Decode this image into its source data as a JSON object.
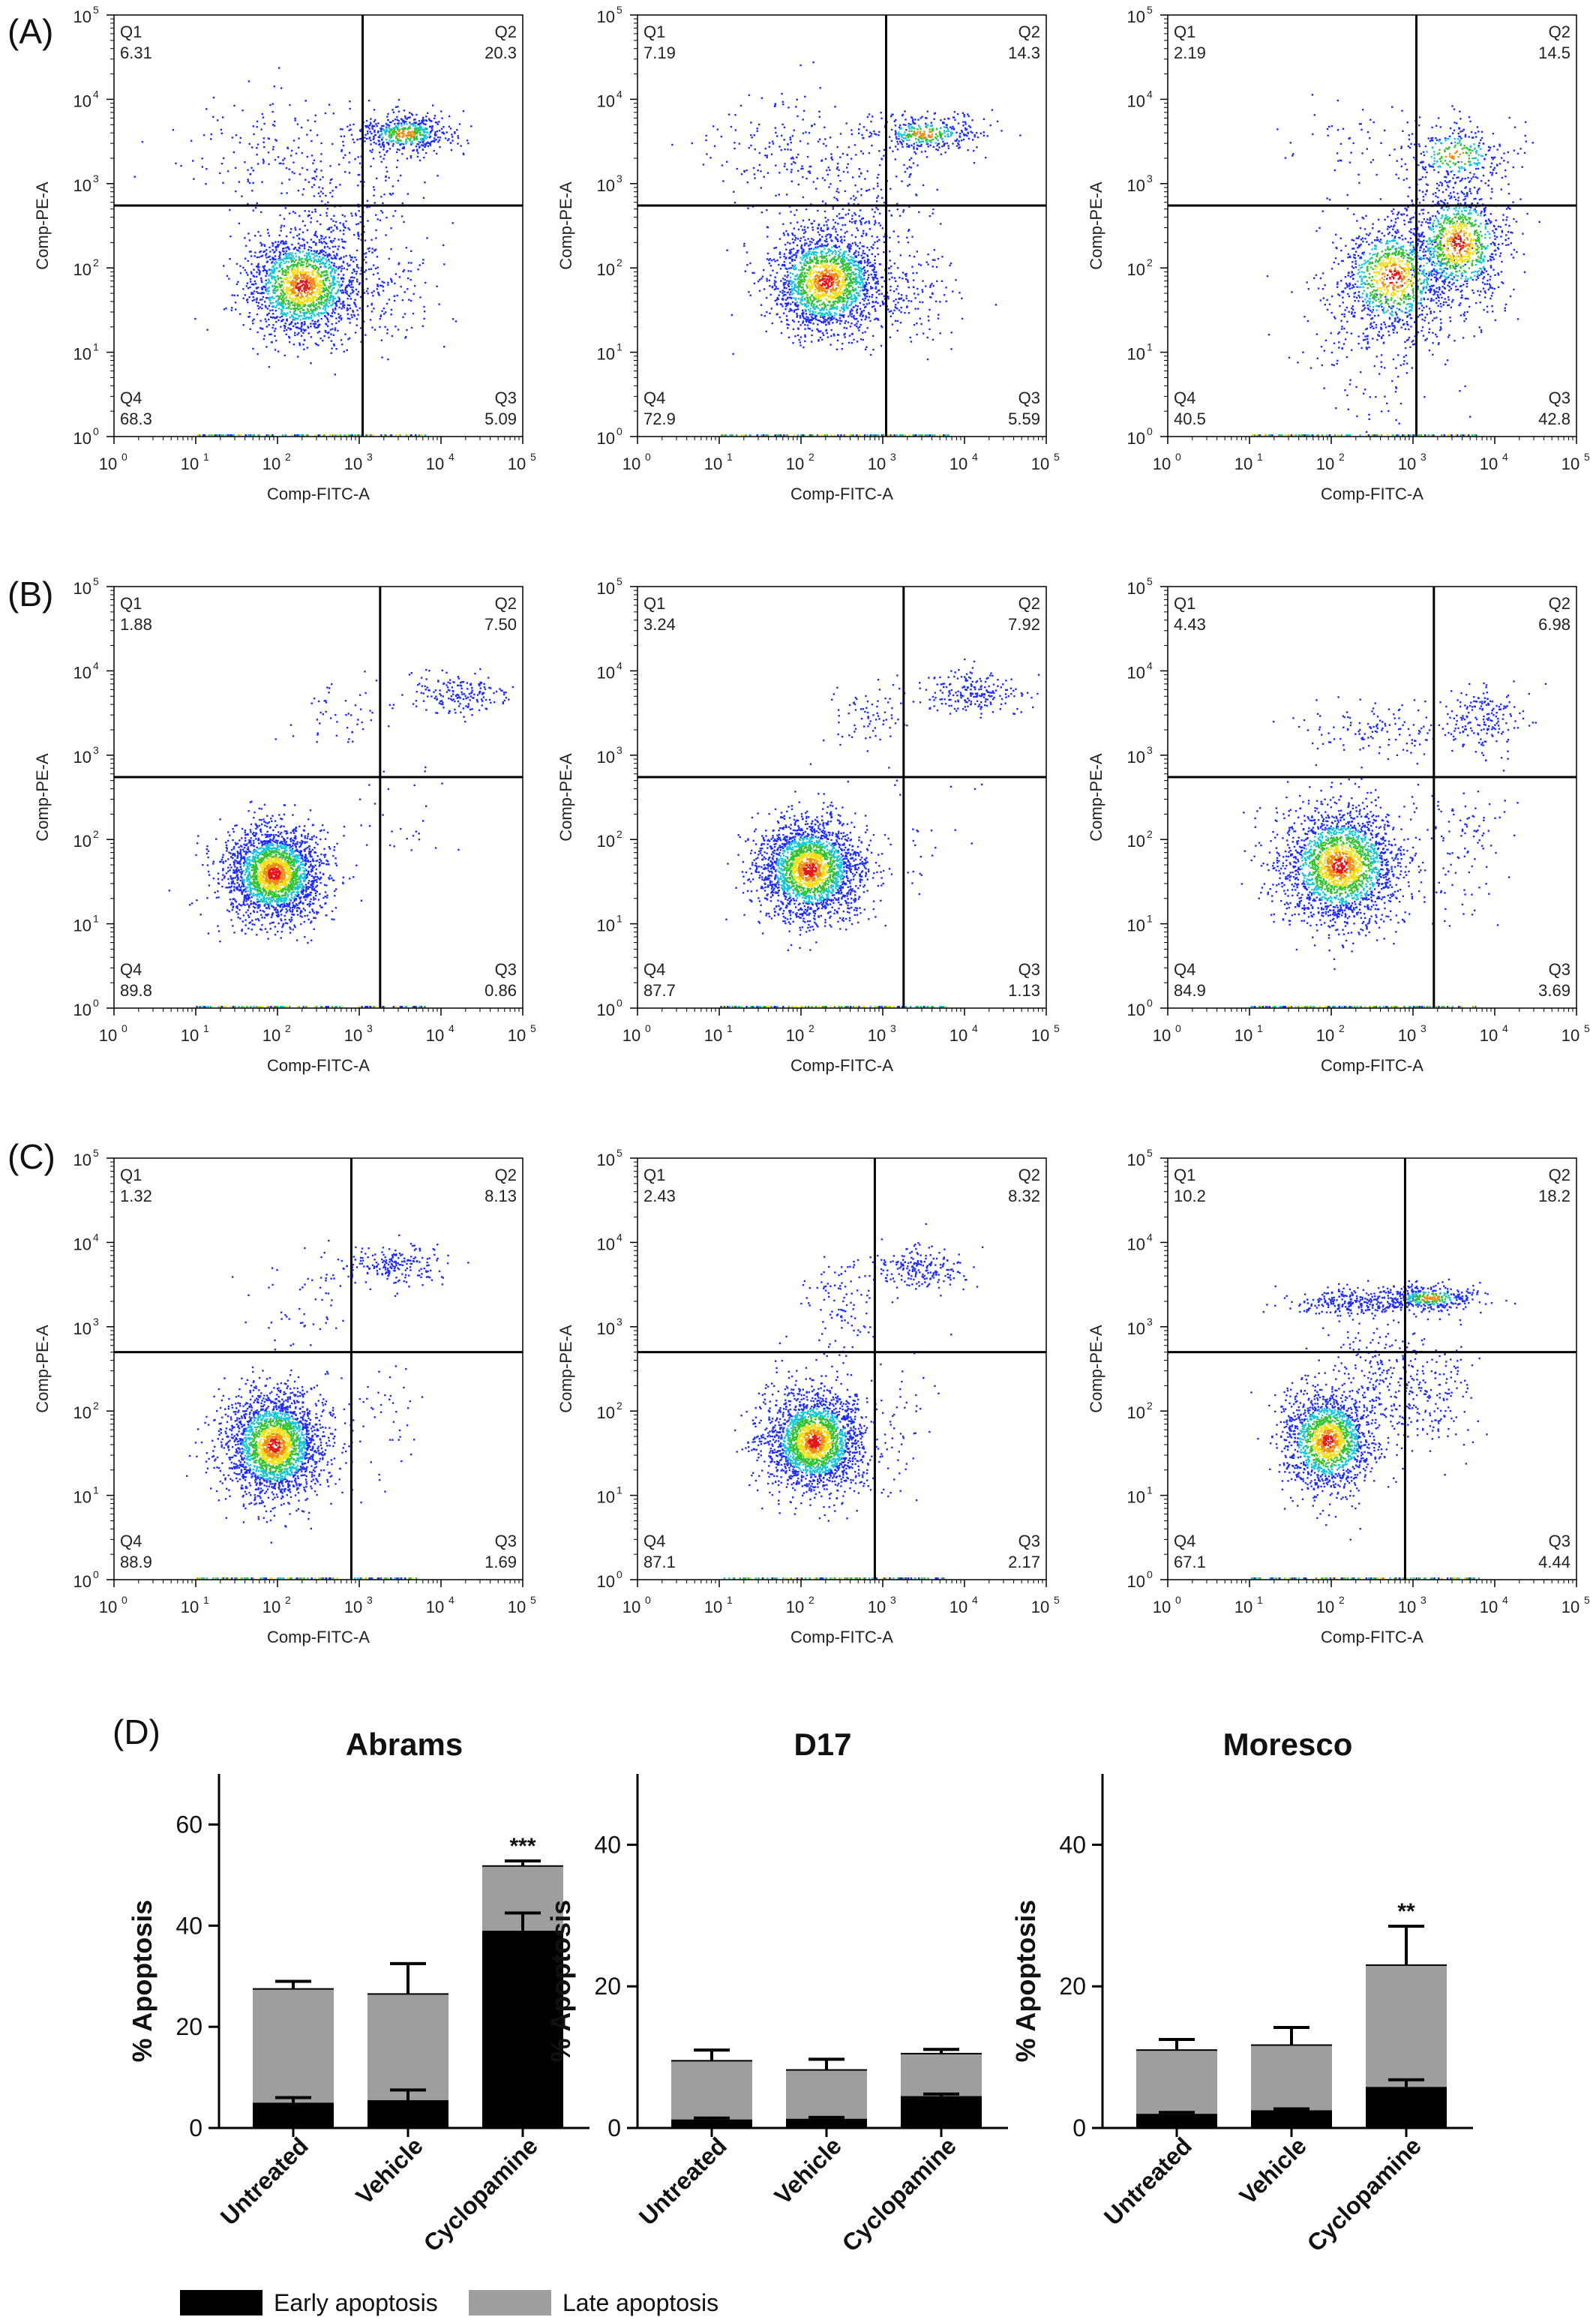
{
  "row_labels": [
    "(A)",
    "(B)",
    "(C)",
    "(D)"
  ],
  "colors": {
    "early": "#000000",
    "late": "#9e9e9e",
    "dot_blue": "#1d2bff",
    "dot_cyan": "#17c6d6",
    "dot_green": "#34c233",
    "dot_yellow": "#f2de17",
    "dot_orange": "#f08a13",
    "dot_red": "#e5161a"
  },
  "chart_data": [
    {
      "type": "scatter",
      "panel": "A",
      "column": 1,
      "xlabel": "Comp-FITC-A",
      "ylabel": "Comp-PE-A",
      "xlim": [
        1,
        100000
      ],
      "ylim": [
        1,
        100000
      ],
      "scale": "log",
      "xticks": [
        "10",
        "10",
        "10",
        "10",
        "10",
        "10"
      ],
      "tick_exponents": [
        "0",
        "1",
        "2",
        "3",
        "4",
        "5"
      ],
      "gate": {
        "x": 1100,
        "y": 550
      },
      "quadrants": {
        "Q1": "6.31",
        "Q2": "20.3",
        "Q3": "5.09",
        "Q4": "68.3"
      },
      "clusters": [
        [
          2.3,
          1.8,
          0.35,
          0.32,
          0.68
        ],
        [
          3.55,
          3.6,
          0.3,
          0.12,
          0.2
        ],
        [
          2.9,
          2.9,
          0.35,
          0.35,
          0.06
        ],
        [
          3.3,
          1.7,
          0.35,
          0.3,
          0.05
        ],
        [
          1.8,
          3.4,
          0.5,
          0.35,
          0.06
        ]
      ]
    },
    {
      "type": "scatter",
      "panel": "A",
      "column": 2,
      "xlabel": "Comp-FITC-A",
      "ylabel": "Comp-PE-A",
      "xlim": [
        1,
        100000
      ],
      "ylim": [
        1,
        100000
      ],
      "scale": "log",
      "xticks": [
        "10",
        "10",
        "10",
        "10",
        "10",
        "10"
      ],
      "tick_exponents": [
        "0",
        "1",
        "2",
        "3",
        "4",
        "5"
      ],
      "gate": {
        "x": 1100,
        "y": 550
      },
      "quadrants": {
        "Q1": "7.19",
        "Q2": "14.3",
        "Q3": "5.59",
        "Q4": "72.9"
      },
      "clusters": [
        [
          2.3,
          1.85,
          0.35,
          0.32,
          0.73
        ],
        [
          3.5,
          3.6,
          0.35,
          0.12,
          0.14
        ],
        [
          2.9,
          2.9,
          0.35,
          0.35,
          0.05
        ],
        [
          3.3,
          1.7,
          0.35,
          0.3,
          0.06
        ],
        [
          1.8,
          3.4,
          0.5,
          0.35,
          0.07
        ]
      ]
    },
    {
      "type": "scatter",
      "panel": "A",
      "column": 3,
      "xlabel": "Comp-FITC-A",
      "ylabel": "Comp-PE-A",
      "xlim": [
        1,
        100000
      ],
      "ylim": [
        1,
        100000
      ],
      "scale": "log",
      "xticks": [
        "10",
        "10",
        "10",
        "10",
        "10",
        "10"
      ],
      "tick_exponents": [
        "0",
        "1",
        "2",
        "3",
        "4",
        "5"
      ],
      "gate": {
        "x": 1100,
        "y": 550
      },
      "quadrants": {
        "Q1": "2.19",
        "Q2": "14.5",
        "Q3": "42.8",
        "Q4": "40.5"
      },
      "clusters": [
        [
          2.75,
          1.9,
          0.35,
          0.35,
          0.4
        ],
        [
          3.55,
          2.3,
          0.3,
          0.35,
          0.4
        ],
        [
          3.5,
          3.35,
          0.35,
          0.2,
          0.12
        ],
        [
          2.6,
          1.1,
          0.5,
          0.5,
          0.06
        ],
        [
          2.2,
          3.4,
          0.5,
          0.3,
          0.02
        ]
      ]
    },
    {
      "type": "scatter",
      "panel": "B",
      "column": 1,
      "xlabel": "Comp-FITC-A",
      "ylabel": "Comp-PE-A",
      "xlim": [
        1,
        100000
      ],
      "ylim": [
        1,
        100000
      ],
      "scale": "log",
      "xticks": [
        "10",
        "10",
        "10",
        "10",
        "10",
        "10"
      ],
      "tick_exponents": [
        "0",
        "1",
        "2",
        "3",
        "4",
        "5"
      ],
      "gate": {
        "x": 1800,
        "y": 550
      },
      "quadrants": {
        "Q1": "1.88",
        "Q2": "7.50",
        "Q3": "0.86",
        "Q4": "89.8"
      },
      "clusters": [
        [
          1.95,
          1.6,
          0.3,
          0.28,
          0.9
        ],
        [
          4.2,
          3.75,
          0.3,
          0.12,
          0.07
        ],
        [
          2.8,
          3.5,
          0.35,
          0.2,
          0.02
        ],
        [
          3.6,
          2.2,
          0.3,
          0.4,
          0.01
        ]
      ]
    },
    {
      "type": "scatter",
      "panel": "B",
      "column": 2,
      "xlabel": "Comp-FITC-A",
      "ylabel": "Comp-PE-A",
      "xlim": [
        1,
        100000
      ],
      "ylim": [
        1,
        100000
      ],
      "scale": "log",
      "xticks": [
        "10",
        "10",
        "10",
        "10",
        "10",
        "10"
      ],
      "tick_exponents": [
        "0",
        "1",
        "2",
        "3",
        "4",
        "5"
      ],
      "gate": {
        "x": 1800,
        "y": 550
      },
      "quadrants": {
        "Q1": "3.24",
        "Q2": "7.92",
        "Q3": "1.13",
        "Q4": "87.7"
      },
      "clusters": [
        [
          2.1,
          1.65,
          0.32,
          0.3,
          0.88
        ],
        [
          4.1,
          3.75,
          0.3,
          0.12,
          0.08
        ],
        [
          2.9,
          3.45,
          0.3,
          0.2,
          0.03
        ],
        [
          3.5,
          2.0,
          0.3,
          0.4,
          0.01
        ]
      ]
    },
    {
      "type": "scatter",
      "panel": "B",
      "column": 3,
      "xlabel": "Comp-FITC-A",
      "ylabel": "Comp-PE-A",
      "xlim": [
        1,
        100000
      ],
      "ylim": [
        1,
        100000
      ],
      "scale": "log",
      "xticks": [
        "10",
        "10",
        "10",
        "10",
        "10",
        "10"
      ],
      "tick_exponents": [
        "0",
        "1",
        "2",
        "3",
        "4",
        "5"
      ],
      "gate": {
        "x": 1800,
        "y": 550
      },
      "quadrants": {
        "Q1": "4.43",
        "Q2": "6.98",
        "Q3": "3.69",
        "Q4": "84.9"
      },
      "clusters": [
        [
          2.1,
          1.7,
          0.38,
          0.35,
          0.84
        ],
        [
          3.85,
          3.45,
          0.25,
          0.2,
          0.07
        ],
        [
          2.6,
          3.3,
          0.45,
          0.15,
          0.05
        ],
        [
          3.6,
          2.0,
          0.3,
          0.45,
          0.04
        ]
      ]
    },
    {
      "type": "scatter",
      "panel": "C",
      "column": 1,
      "xlabel": "Comp-FITC-A",
      "ylabel": "Comp-PE-A",
      "xlim": [
        1,
        100000
      ],
      "ylim": [
        1,
        100000
      ],
      "scale": "log",
      "xticks": [
        "10",
        "10",
        "10",
        "10",
        "10",
        "10"
      ],
      "tick_exponents": [
        "0",
        "1",
        "2",
        "3",
        "4",
        "5"
      ],
      "gate": {
        "x": 800,
        "y": 500
      },
      "quadrants": {
        "Q1": "1.32",
        "Q2": "8.13",
        "Q3": "1.69",
        "Q4": "88.9"
      },
      "clusters": [
        [
          1.95,
          1.6,
          0.3,
          0.32,
          0.88
        ],
        [
          3.4,
          3.75,
          0.3,
          0.12,
          0.08
        ],
        [
          2.3,
          3.3,
          0.3,
          0.3,
          0.02
        ],
        [
          3.2,
          2.0,
          0.3,
          0.4,
          0.02
        ]
      ]
    },
    {
      "type": "scatter",
      "panel": "C",
      "column": 2,
      "xlabel": "Comp-FITC-A",
      "ylabel": "Comp-PE-A",
      "xlim": [
        1,
        100000
      ],
      "ylim": [
        1,
        100000
      ],
      "scale": "log",
      "xticks": [
        "10",
        "10",
        "10",
        "10",
        "10",
        "10"
      ],
      "tick_exponents": [
        "0",
        "1",
        "2",
        "3",
        "4",
        "5"
      ],
      "gate": {
        "x": 800,
        "y": 500
      },
      "quadrants": {
        "Q1": "2.43",
        "Q2": "8.32",
        "Q3": "2.17",
        "Q4": "87.1"
      },
      "clusters": [
        [
          2.15,
          1.65,
          0.3,
          0.3,
          0.86
        ],
        [
          3.45,
          3.7,
          0.3,
          0.12,
          0.08
        ],
        [
          2.5,
          3.3,
          0.3,
          0.3,
          0.04
        ],
        [
          3.2,
          1.9,
          0.3,
          0.4,
          0.02
        ]
      ]
    },
    {
      "type": "scatter",
      "panel": "C",
      "column": 3,
      "xlabel": "Comp-FITC-A",
      "ylabel": "Comp-PE-A",
      "xlim": [
        1,
        100000
      ],
      "ylim": [
        1,
        100000
      ],
      "scale": "log",
      "xticks": [
        "10",
        "10",
        "10",
        "10",
        "10",
        "10"
      ],
      "tick_exponents": [
        "0",
        "1",
        "2",
        "3",
        "4",
        "5"
      ],
      "gate": {
        "x": 800,
        "y": 500
      },
      "quadrants": {
        "Q1": "10.2",
        "Q2": "18.2",
        "Q3": "4.44",
        "Q4": "67.1"
      },
      "clusters": [
        [
          1.95,
          1.65,
          0.28,
          0.3,
          0.62
        ],
        [
          3.2,
          3.35,
          0.3,
          0.08,
          0.14
        ],
        [
          2.3,
          3.3,
          0.4,
          0.08,
          0.1
        ],
        [
          3.1,
          2.2,
          0.35,
          0.35,
          0.08
        ],
        [
          2.6,
          2.5,
          0.3,
          0.3,
          0.06
        ]
      ]
    },
    {
      "type": "bar",
      "stacked": true,
      "panel": "D",
      "title": "Abrams",
      "ylabel": "% Apoptosis",
      "categories": [
        "Untreated",
        "Vehicle",
        "Cyclopamine"
      ],
      "ylim": [
        0,
        70
      ],
      "yticks": [
        "0",
        "20",
        "40",
        "60"
      ],
      "series": [
        {
          "name": "Early apoptosis",
          "values": [
            5,
            5.5,
            39
          ],
          "error": [
            1,
            2,
            3.5
          ]
        },
        {
          "name": "Late apoptosis",
          "values": [
            22.5,
            21,
            12.8
          ],
          "error": [
            1.5,
            6,
            1
          ]
        }
      ],
      "annotations": [
        "",
        "",
        "***"
      ]
    },
    {
      "type": "bar",
      "stacked": true,
      "panel": "D",
      "title": "D17",
      "ylabel": "% Apoptosis",
      "categories": [
        "Untreated",
        "Vehicle",
        "Cyclopamine"
      ],
      "ylim": [
        0,
        50
      ],
      "yticks": [
        "0",
        "20",
        "40"
      ],
      "series": [
        {
          "name": "Early apoptosis",
          "values": [
            1.2,
            1.3,
            4.5
          ],
          "error": [
            0.2,
            0.2,
            0.3
          ]
        },
        {
          "name": "Late apoptosis",
          "values": [
            8.3,
            6.9,
            6
          ],
          "error": [
            1.5,
            1.5,
            0.6
          ]
        }
      ],
      "annotations": [
        "",
        "",
        ""
      ]
    },
    {
      "type": "bar",
      "stacked": true,
      "panel": "D",
      "title": "Moresco",
      "ylabel": "% Apoptosis",
      "categories": [
        "Untreated",
        "Vehicle",
        "Cyclopamine"
      ],
      "ylim": [
        0,
        50
      ],
      "yticks": [
        "0",
        "20",
        "40"
      ],
      "series": [
        {
          "name": "Early apoptosis",
          "values": [
            2,
            2.5,
            5.8
          ],
          "error": [
            0.2,
            0.2,
            1
          ]
        },
        {
          "name": "Late apoptosis",
          "values": [
            9,
            9.2,
            17.2
          ],
          "error": [
            1.5,
            2.5,
            5.5
          ]
        }
      ],
      "annotations": [
        "",
        "",
        "**"
      ]
    }
  ],
  "legend": [
    {
      "label": "Early apoptosis",
      "color": "#000000"
    },
    {
      "label": "Late apoptosis",
      "color": "#9e9e9e"
    }
  ]
}
